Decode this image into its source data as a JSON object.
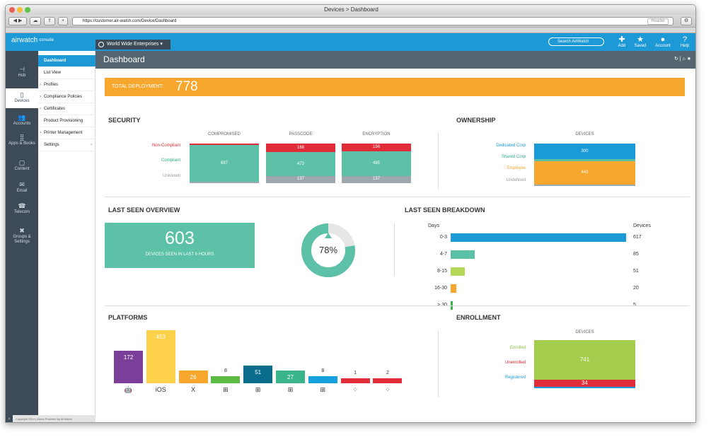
{
  "window": {
    "title": "Devices > Dashboard",
    "url": "https://customer.air-watch.com/Device/Dashboard",
    "reader_label": "Reader"
  },
  "header": {
    "logo": "airwatch",
    "logo_sub": "console",
    "org": "World Wide Enterprises",
    "search_placeholder": "Search AirWatch",
    "actions": [
      {
        "label": "Add",
        "icon": "plus-icon"
      },
      {
        "label": "Saved",
        "icon": "star-icon"
      },
      {
        "label": "Account",
        "icon": "user-icon"
      },
      {
        "label": "Help",
        "icon": "help-icon"
      }
    ]
  },
  "sidebar": {
    "items": [
      {
        "label": "Hub",
        "icon": "hub-icon"
      },
      {
        "label": "Devices",
        "icon": "devices-icon"
      },
      {
        "label": "Accounts",
        "icon": "accounts-icon"
      },
      {
        "label": "Apps & Books",
        "icon": "apps-icon"
      },
      {
        "label": "Content",
        "icon": "content-icon"
      },
      {
        "label": "Email",
        "icon": "email-icon"
      },
      {
        "label": "Telecom",
        "icon": "telecom-icon"
      },
      {
        "label": "Groups & Settings",
        "icon": "settings-icon"
      }
    ],
    "active": "Devices"
  },
  "subnav": {
    "items": [
      {
        "label": "Dashboard",
        "expandable": false
      },
      {
        "label": "List View",
        "expandable": false
      },
      {
        "label": "Profiles",
        "expandable": true
      },
      {
        "label": "Compliance Policies",
        "expandable": true
      },
      {
        "label": "Certificates",
        "expandable": true
      },
      {
        "label": "Product Provisioning",
        "expandable": false
      },
      {
        "label": "Printer Management",
        "expandable": true
      },
      {
        "label": "Settings",
        "expandable": false
      }
    ],
    "active": "Dashboard"
  },
  "footer": {
    "text": "Copyright 2014 | About   Powered by AirWatch"
  },
  "dashboard": {
    "title": "Dashboard",
    "total": {
      "label": "TOTAL DEPLOYMENT:",
      "value": "778"
    },
    "security": {
      "title": "SECURITY",
      "row_labels": [
        "Non-Compliant",
        "Compliant",
        "Unknown"
      ],
      "columns": [
        {
          "name": "COMPROMISED",
          "values": [
            null,
            697,
            null
          ]
        },
        {
          "name": "PASSCODE",
          "values": [
            168,
            473,
            137
          ]
        },
        {
          "name": "ENCRYPTION",
          "values": [
            156,
            485,
            137
          ]
        }
      ]
    },
    "ownership": {
      "title": "OWNERSHIP",
      "column": "DEVICES",
      "labels": [
        "Dedicated Corp",
        "Shared Corp",
        "Employee",
        "Undefined"
      ],
      "values": [
        300,
        null,
        443,
        null
      ]
    },
    "last_seen_overview": {
      "title": "LAST SEEN OVERVIEW",
      "count": "603",
      "caption": "DEVICES SEEN IN LAST 6 HOURS",
      "percent": 78,
      "percent_label": "78%"
    },
    "last_seen_breakdown": {
      "title": "LAST SEEN BREAKDOWN",
      "days_header": "Days",
      "devices_header": "Devices",
      "categories": [
        "0-3",
        "4-7",
        "8-15",
        "16-30",
        "> 30"
      ],
      "values": [
        617,
        85,
        51,
        20,
        5
      ]
    },
    "platforms": {
      "title": "PLATFORMS",
      "items": [
        {
          "name": "Android",
          "value": 172,
          "color": "#7b3f9a",
          "icon": "android-icon"
        },
        {
          "name": "iOS",
          "value": 453,
          "color": "#fdd14a",
          "icon": "ios-icon"
        },
        {
          "name": "OS X",
          "value": 26,
          "color": "#f7a72d",
          "icon": "osx-icon"
        },
        {
          "name": "Windows",
          "value": 8,
          "color": "#5bbb42",
          "icon": "windows-icon"
        },
        {
          "name": "Windows PC",
          "value": 51,
          "color": "#0a6d8c",
          "icon": "windows-pc-icon"
        },
        {
          "name": "Windows Phone",
          "value": 27,
          "color": "#3ab58a",
          "icon": "windows-phone-icon"
        },
        {
          "name": "Windows RT",
          "value": 8,
          "color": "#16a0dd",
          "icon": "windows-rt-icon"
        },
        {
          "name": "BlackBerry",
          "value": 1,
          "color": "#e12d39",
          "icon": "blackberry-icon"
        },
        {
          "name": "BlackBerry 10",
          "value": 2,
          "color": "#e12d39",
          "icon": "blackberry10-icon"
        }
      ]
    },
    "enrollment": {
      "title": "ENROLLMENT",
      "column": "DEVICES",
      "labels": [
        "Enrolled",
        "Unenrolled",
        "Registered"
      ],
      "values": [
        741,
        34,
        null
      ]
    }
  },
  "chart_data": [
    {
      "type": "bar",
      "title": "SECURITY",
      "categories": [
        "COMPROMISED",
        "PASSCODE",
        "ENCRYPTION"
      ],
      "series": [
        {
          "name": "Non-Compliant",
          "values": [
            null,
            168,
            156
          ]
        },
        {
          "name": "Compliant",
          "values": [
            697,
            473,
            485
          ]
        },
        {
          "name": "Unknown",
          "values": [
            null,
            137,
            137
          ]
        }
      ]
    },
    {
      "type": "bar",
      "title": "OWNERSHIP",
      "categories": [
        "Dedicated Corp",
        "Shared Corp",
        "Employee",
        "Undefined"
      ],
      "values": [
        300,
        null,
        443,
        null
      ]
    },
    {
      "type": "pie",
      "title": "LAST SEEN OVERVIEW",
      "values": [
        78,
        22
      ]
    },
    {
      "type": "bar",
      "title": "LAST SEEN BREAKDOWN",
      "xlabel": "Days",
      "ylabel": "Devices",
      "categories": [
        "0-3",
        "4-7",
        "8-15",
        "16-30",
        "> 30"
      ],
      "values": [
        617,
        85,
        51,
        20,
        5
      ]
    },
    {
      "type": "bar",
      "title": "PLATFORMS",
      "values": [
        172,
        453,
        26,
        8,
        51,
        27,
        8,
        1,
        2
      ]
    },
    {
      "type": "bar",
      "title": "ENROLLMENT",
      "categories": [
        "Enrolled",
        "Unenrolled",
        "Registered"
      ],
      "values": [
        741,
        34,
        null
      ]
    }
  ]
}
